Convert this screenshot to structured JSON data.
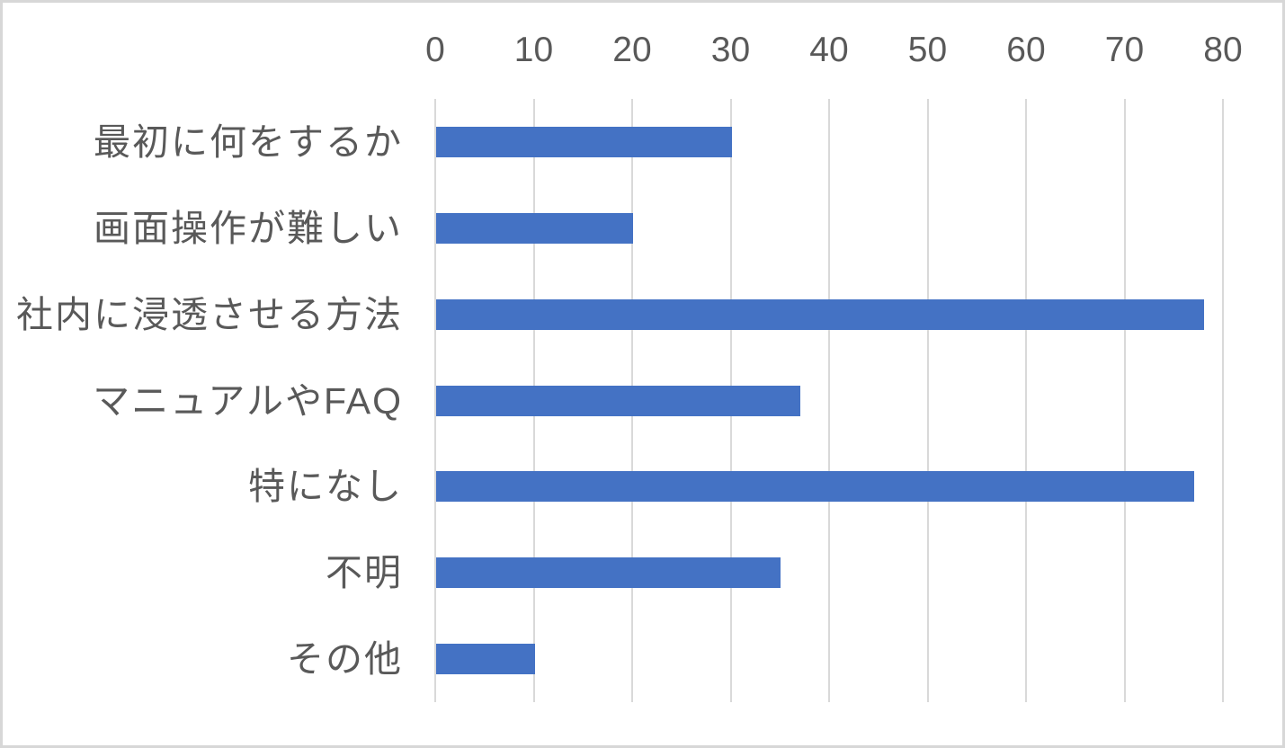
{
  "chart_data": {
    "type": "bar",
    "orientation": "horizontal",
    "title": "",
    "xlabel": "",
    "ylabel": "",
    "categories": [
      "最初に何をするか",
      "画面操作が難しい",
      "社内に浸透させる方法",
      "マニュアルやFAQ",
      "特になし",
      "不明",
      "その他"
    ],
    "values": [
      30,
      20,
      78,
      37,
      77,
      35,
      10
    ],
    "xlim": [
      0,
      80
    ],
    "xticks": [
      0,
      10,
      20,
      30,
      40,
      50,
      60,
      70,
      80
    ],
    "grid": true,
    "legend": "none",
    "colors": {
      "bar": "#4472C4",
      "gridline": "#D9D9D9",
      "axis_text": "#595959",
      "background": "#FFFFFF",
      "frame_border": "#D7D7D7"
    }
  }
}
